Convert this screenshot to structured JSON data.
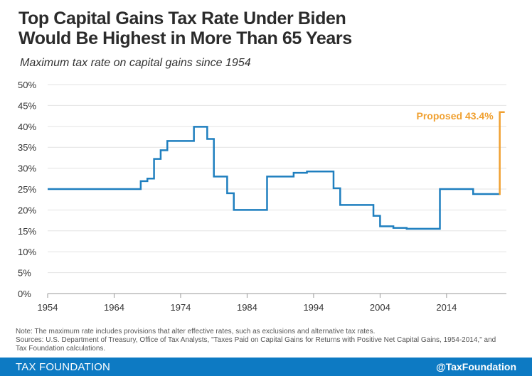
{
  "title_line1": "Top Capital Gains Tax Rate Under Biden",
  "title_line2": "Would Be Highest in More Than 65 Years",
  "subtitle": "Maximum tax rate on capital gains since 1954",
  "notes": {
    "note": "Note: The maximum rate includes provisions that alter effective rates, such as exclusions and alternative tax rates.",
    "sources_line1": "Sources: U.S. Department of Treasury, Office of Tax Analysts, \"Taxes Paid on Capital Gains for Returns with Positive Net Capital Gains, 1954-2014,\" and",
    "sources_line2": "Tax Foundation calculations."
  },
  "footer": {
    "brand": "TAX FOUNDATION",
    "handle": "@TaxFoundation"
  },
  "colors": {
    "line": "#1f7fbf",
    "proposed": "#f0a030",
    "grid": "#e3e3e3",
    "footer": "#0d7ac3"
  },
  "chart_data": {
    "type": "line",
    "step": true,
    "xlim": [
      1954,
      2023
    ],
    "ylim": [
      0,
      50
    ],
    "x_ticks": [
      1954,
      1964,
      1974,
      1984,
      1994,
      2004,
      2014
    ],
    "x_tick_labels": [
      "1954",
      "1964",
      "1974",
      "1984",
      "1994",
      "2004",
      "2014"
    ],
    "y_ticks": [
      0,
      5,
      10,
      15,
      20,
      25,
      30,
      35,
      40,
      45,
      50
    ],
    "y_tick_labels": [
      "0%",
      "5%",
      "10%",
      "15%",
      "20%",
      "25%",
      "30%",
      "35%",
      "40%",
      "45%",
      "50%"
    ],
    "grid": true,
    "series": [
      {
        "x": [
          1954,
          1968,
          1969,
          1970,
          1971,
          1972,
          1976,
          1978,
          1979,
          1981,
          1982,
          1987,
          1991,
          1993,
          1997,
          1998,
          2003,
          2004,
          2006,
          2008,
          2013,
          2018,
          2022
        ],
        "y": [
          25,
          26.9,
          27.5,
          32.2,
          34.3,
          36.5,
          39.9,
          37,
          28,
          24,
          20,
          28,
          28.9,
          29.2,
          25.2,
          21.2,
          18.6,
          16.1,
          15.7,
          15.5,
          25,
          23.8,
          23.8
        ]
      }
    ],
    "annotations": [
      {
        "text": "Proposed 43.4%",
        "x": 2022,
        "y_from": 23.8,
        "y_to": 43.4
      }
    ]
  }
}
